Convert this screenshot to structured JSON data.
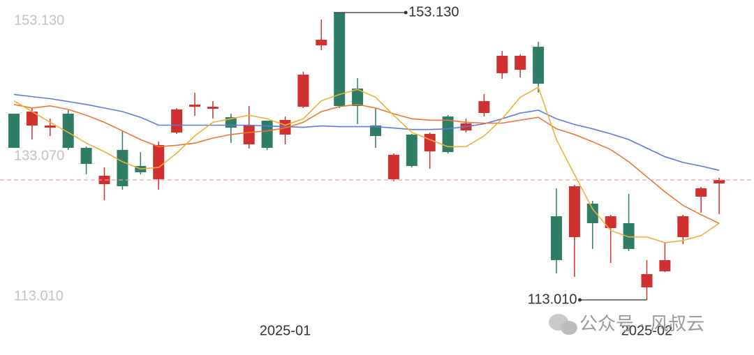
{
  "chart_data": {
    "type": "candlestick",
    "categories": [
      null,
      null,
      null,
      null,
      null,
      null,
      null,
      null,
      null,
      null,
      null,
      null,
      null,
      null,
      null,
      "2025-01",
      null,
      null,
      null,
      null,
      null,
      null,
      null,
      null,
      null,
      null,
      null,
      null,
      null,
      null,
      null,
      null,
      null,
      null,
      null,
      "2025-02",
      null,
      null,
      null,
      null
    ],
    "open": [
      139.01,
      137.36,
      137.06,
      139.01,
      134.24,
      129.17,
      133.95,
      131.71,
      129.86,
      136.38,
      139.98,
      139.69,
      138.52,
      134.73,
      138.04,
      136.09,
      139.98,
      148.55,
      153.13,
      142.52,
      137.36,
      129.86,
      136.09,
      133.75,
      138.62,
      136.67,
      139.11,
      144.66,
      145.14,
      148.36,
      124.69,
      121.77,
      126.45,
      123.04,
      123.72,
      114.76,
      117.0,
      121.77,
      127.42,
      129.27
    ],
    "close": [
      134.24,
      139.3,
      137.36,
      134.24,
      132.0,
      130.34,
      128.88,
      130.83,
      134.63,
      139.6,
      140.28,
      139.98,
      137.06,
      137.36,
      134.24,
      138.13,
      144.46,
      149.33,
      140.08,
      140.08,
      135.89,
      133.27,
      131.71,
      136.19,
      133.65,
      137.65,
      140.76,
      147.09,
      147.09,
      143.2,
      118.56,
      128.88,
      123.72,
      124.69,
      120.12,
      116.61,
      118.56,
      124.69,
      128.59,
      129.76
    ],
    "low": [
      134.24,
      135.41,
      135.89,
      133.95,
      130.54,
      126.93,
      128.4,
      130.54,
      128.4,
      136.19,
      138.72,
      138.33,
      134.92,
      134.14,
      133.95,
      134.73,
      139.79,
      147.87,
      139.79,
      137.55,
      134.24,
      129.57,
      131.51,
      131.32,
      133.46,
      136.38,
      138.62,
      143.88,
      144.07,
      141.93,
      116.71,
      116.22,
      120.12,
      118.17,
      119.83,
      113.01,
      116.91,
      120.8,
      125.18,
      124.99
    ],
    "high": [
      139.01,
      139.79,
      138.33,
      139.5,
      134.43,
      131.51,
      136.67,
      133.65,
      135.11,
      139.79,
      141.93,
      140.76,
      139.01,
      140.08,
      138.04,
      138.62,
      144.85,
      152.16,
      153.13,
      143.98,
      139.79,
      133.46,
      136.19,
      136.38,
      138.82,
      138.33,
      141.74,
      147.77,
      147.29,
      149.04,
      128.59,
      129.08,
      126.84,
      124.89,
      127.81,
      118.56,
      121.09,
      124.89,
      128.79,
      130.05
    ],
    "up_color": "#d0302f",
    "down_color": "#2f7d66",
    "series": [
      {
        "color": "#5b7be0",
        "values": [
          141.7,
          141.4,
          141.1,
          140.7,
          140.3,
          139.8,
          139.3,
          138.5,
          137.4,
          137.4,
          137.4,
          137.4,
          137.4,
          137.4,
          137.3,
          137.2,
          137.1,
          137.3,
          137.2,
          137.2,
          137.2,
          137.0,
          136.8,
          136.8,
          136.9,
          137.2,
          137.6,
          138.3,
          139.1,
          139.5,
          138.3,
          137.5,
          136.9,
          136.2,
          135.4,
          134.2,
          133.0,
          132.2,
          131.7,
          131.1
        ]
      },
      {
        "color": "#ee7733",
        "values": [
          140.3,
          139.8,
          140.1,
          139.6,
          138.8,
          137.8,
          136.6,
          135.4,
          134.4,
          134.6,
          134.9,
          135.6,
          136.1,
          136.4,
          136.6,
          137.0,
          137.8,
          139.3,
          140.0,
          140.3,
          139.8,
          139.0,
          138.3,
          138.1,
          138.1,
          137.8,
          137.7,
          137.7,
          138.1,
          138.5,
          136.9,
          136.1,
          135.1,
          134.0,
          132.3,
          130.2,
          128.1,
          126.2,
          124.9,
          123.7
        ]
      },
      {
        "color": "#f2b035",
        "values": [
          140.8,
          139.3,
          137.8,
          136.4,
          134.9,
          133.7,
          132.3,
          131.3,
          131.5,
          133.5,
          135.9,
          137.8,
          138.3,
          138.8,
          138.3,
          137.4,
          138.3,
          140.8,
          141.7,
          142.4,
          141.3,
          138.8,
          136.4,
          135.4,
          134.4,
          134.4,
          135.9,
          138.3,
          141.3,
          142.7,
          135.4,
          130.5,
          125.7,
          122.7,
          121.8,
          121.8,
          121.0,
          121.3,
          122.0,
          123.7
        ]
      }
    ],
    "ylim": [
      113.01,
      153.13
    ],
    "yticks": [
      {
        "value": 153.13,
        "label": "153.130"
      },
      {
        "value": 133.07,
        "label": "133.070"
      },
      {
        "value": 113.01,
        "label": "113.010"
      }
    ],
    "max_label": "153.130",
    "min_label": "113.010",
    "watermark": "公众号 · 风叔云"
  }
}
